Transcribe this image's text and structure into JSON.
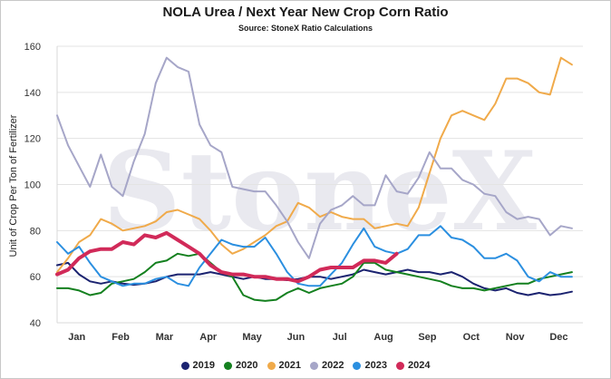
{
  "chart_data": {
    "type": "line",
    "title": "NOLA Urea / Next Year New Crop Corn Ratio",
    "subtitle": "Source: StoneX Ratio Calculations",
    "ylabel": "Unit of Crop Per Ton of Fertilizer",
    "xlabel": "",
    "ylim": [
      40,
      160
    ],
    "yticks": [
      40,
      60,
      80,
      100,
      120,
      140,
      160
    ],
    "xlim": [
      0,
      12
    ],
    "month_labels": [
      "Jan",
      "Feb",
      "Mar",
      "Apr",
      "May",
      "Jun",
      "Jul",
      "Aug",
      "Sep",
      "Oct",
      "Nov",
      "Dec"
    ],
    "grid": "horizontal",
    "legend_position": "bottom",
    "watermark": "StoneX",
    "series": [
      {
        "name": "2019",
        "color": "#1b2370",
        "width": 2,
        "x": [
          0,
          0.25,
          0.5,
          0.75,
          1,
          1.25,
          1.5,
          1.75,
          2,
          2.25,
          2.5,
          2.75,
          3,
          3.25,
          3.5,
          3.75,
          4,
          4.25,
          4.5,
          4.75,
          5,
          5.25,
          5.5,
          5.75,
          6,
          6.25,
          6.5,
          6.75,
          7,
          7.25,
          7.5,
          7.75,
          8,
          8.25,
          8.5,
          8.75,
          9,
          9.25,
          9.5,
          9.75,
          10,
          10.25,
          10.5,
          10.75,
          11,
          11.25,
          11.5,
          11.75
        ],
        "y": [
          65,
          66,
          61,
          58,
          57,
          58,
          57,
          56.5,
          57,
          58,
          60,
          61,
          61,
          61,
          62,
          61,
          60,
          59,
          60,
          59,
          59,
          58.5,
          59,
          60,
          60,
          59,
          60,
          61,
          63,
          62,
          61,
          62,
          63,
          62,
          62,
          61,
          62,
          60,
          57,
          55,
          54,
          55,
          53,
          52,
          53,
          52,
          52.5,
          53.5
        ]
      },
      {
        "name": "2020",
        "color": "#14801f",
        "width": 2,
        "x": [
          0,
          0.25,
          0.5,
          0.75,
          1,
          1.25,
          1.5,
          1.75,
          2,
          2.25,
          2.5,
          2.75,
          3,
          3.25,
          3.5,
          3.75,
          4,
          4.25,
          4.5,
          4.75,
          5,
          5.25,
          5.5,
          5.75,
          6,
          6.25,
          6.5,
          6.75,
          7,
          7.25,
          7.5,
          7.75,
          8,
          8.25,
          8.5,
          8.75,
          9,
          9.25,
          9.5,
          9.75,
          10,
          10.25,
          10.5,
          10.75,
          11,
          11.25,
          11.5,
          11.75
        ],
        "y": [
          55,
          55,
          54,
          52,
          53,
          57,
          58,
          59,
          62,
          66,
          67,
          70,
          69,
          70,
          66,
          62,
          60,
          52,
          50,
          49.5,
          50,
          53,
          55,
          53,
          55,
          56,
          57,
          60,
          66,
          66,
          63,
          62,
          61,
          60,
          59,
          58,
          56,
          55,
          55,
          54,
          55,
          56,
          57,
          57,
          59,
          60,
          61,
          62
        ]
      },
      {
        "name": "2021",
        "color": "#f0aa4a",
        "width": 2,
        "x": [
          0,
          0.25,
          0.5,
          0.75,
          1,
          1.25,
          1.5,
          1.75,
          2,
          2.25,
          2.5,
          2.75,
          3,
          3.25,
          3.5,
          3.75,
          4,
          4.25,
          4.5,
          4.75,
          5,
          5.25,
          5.5,
          5.75,
          6,
          6.25,
          6.5,
          6.75,
          7,
          7.25,
          7.5,
          7.75,
          8,
          8.25,
          8.5,
          8.75,
          9,
          9.25,
          9.5,
          9.75,
          10,
          10.25,
          10.5,
          10.75,
          11,
          11.25,
          11.5,
          11.75
        ],
        "y": [
          62,
          68,
          75,
          78,
          85,
          83,
          80,
          81,
          82,
          84,
          88,
          89,
          87,
          85,
          80,
          74,
          70,
          72,
          75,
          78,
          82,
          84,
          92,
          90,
          86,
          88,
          86,
          85,
          85,
          81,
          82,
          83,
          82,
          90,
          105,
          120,
          130,
          132,
          130,
          128,
          135,
          146,
          146,
          144,
          140,
          139,
          155,
          152
        ]
      },
      {
        "name": "2022",
        "color": "#a6a6c8",
        "width": 2,
        "x": [
          0,
          0.25,
          0.5,
          0.75,
          1,
          1.25,
          1.5,
          1.75,
          2,
          2.25,
          2.5,
          2.75,
          3,
          3.25,
          3.5,
          3.75,
          4,
          4.25,
          4.5,
          4.75,
          5,
          5.25,
          5.5,
          5.75,
          6,
          6.25,
          6.5,
          6.75,
          7,
          7.25,
          7.5,
          7.75,
          8,
          8.25,
          8.5,
          8.75,
          9,
          9.25,
          9.5,
          9.75,
          10,
          10.25,
          10.5,
          10.75,
          11,
          11.25,
          11.5,
          11.75
        ],
        "y": [
          130,
          117,
          108,
          99,
          113,
          99,
          95,
          110,
          122,
          144,
          155,
          151,
          149,
          126,
          117,
          114,
          99,
          98,
          97,
          97,
          91,
          84,
          75,
          68,
          83,
          89,
          91,
          95,
          91,
          91,
          104,
          97,
          96,
          103,
          114,
          107,
          107,
          102,
          100,
          96,
          95,
          88,
          85,
          86,
          85,
          78,
          82,
          81
        ]
      },
      {
        "name": "2023",
        "color": "#2b8fe0",
        "width": 2,
        "x": [
          0,
          0.25,
          0.5,
          0.75,
          1,
          1.25,
          1.5,
          1.75,
          2,
          2.25,
          2.5,
          2.75,
          3,
          3.25,
          3.5,
          3.75,
          4,
          4.25,
          4.5,
          4.75,
          5,
          5.25,
          5.5,
          5.75,
          6,
          6.25,
          6.5,
          6.75,
          7,
          7.25,
          7.5,
          7.75,
          8,
          8.25,
          8.5,
          8.75,
          9,
          9.25,
          9.5,
          9.75,
          10,
          10.25,
          10.5,
          10.75,
          11,
          11.25,
          11.5,
          11.75
        ],
        "y": [
          75,
          70,
          73,
          66,
          60,
          58,
          56,
          57,
          57,
          59,
          60,
          57,
          56,
          64,
          70,
          76,
          74,
          73,
          73,
          77,
          70,
          62,
          57,
          56,
          56,
          61,
          66,
          74,
          81,
          73,
          71,
          70,
          72,
          78,
          78,
          82,
          77,
          76,
          73,
          68,
          68,
          70,
          67,
          60,
          58,
          62,
          60,
          60
        ]
      },
      {
        "name": "2024",
        "color": "#d12a59",
        "width": 4,
        "x": [
          0,
          0.25,
          0.5,
          0.75,
          1,
          1.25,
          1.5,
          1.75,
          2,
          2.25,
          2.5,
          2.75,
          3,
          3.25,
          3.5,
          3.75,
          4,
          4.25,
          4.5,
          4.75,
          5,
          5.25,
          5.5,
          5.75,
          6,
          6.25,
          6.5,
          6.75,
          7,
          7.25,
          7.5,
          7.75
        ],
        "y": [
          61,
          63,
          68,
          71,
          72,
          72,
          75,
          74,
          78,
          77,
          79,
          76,
          73,
          70,
          65,
          62,
          61,
          61,
          60,
          60,
          59,
          59,
          58,
          60,
          63,
          64,
          64,
          64,
          67,
          67,
          66,
          70
        ]
      }
    ]
  }
}
